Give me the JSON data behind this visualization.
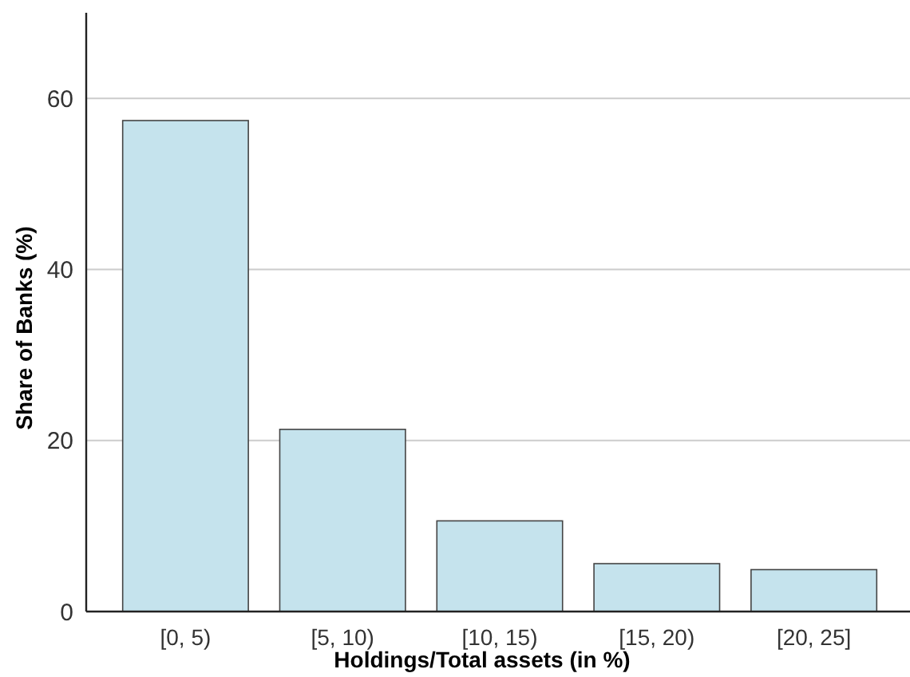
{
  "chart_data": {
    "type": "bar",
    "xlabel": "Holdings/Total assets (in %)",
    "ylabel": "Share of Banks (%)",
    "categories": [
      "[0, 5)",
      "[5, 10)",
      "[10, 15)",
      "[15, 20)",
      "[20, 25]"
    ],
    "values": [
      57.4,
      21.3,
      10.6,
      5.6,
      4.9
    ],
    "color": "#c5e3ed",
    "ylim": [
      0,
      70
    ],
    "yticks": [
      0,
      20,
      40,
      60
    ],
    "grid": "y"
  }
}
